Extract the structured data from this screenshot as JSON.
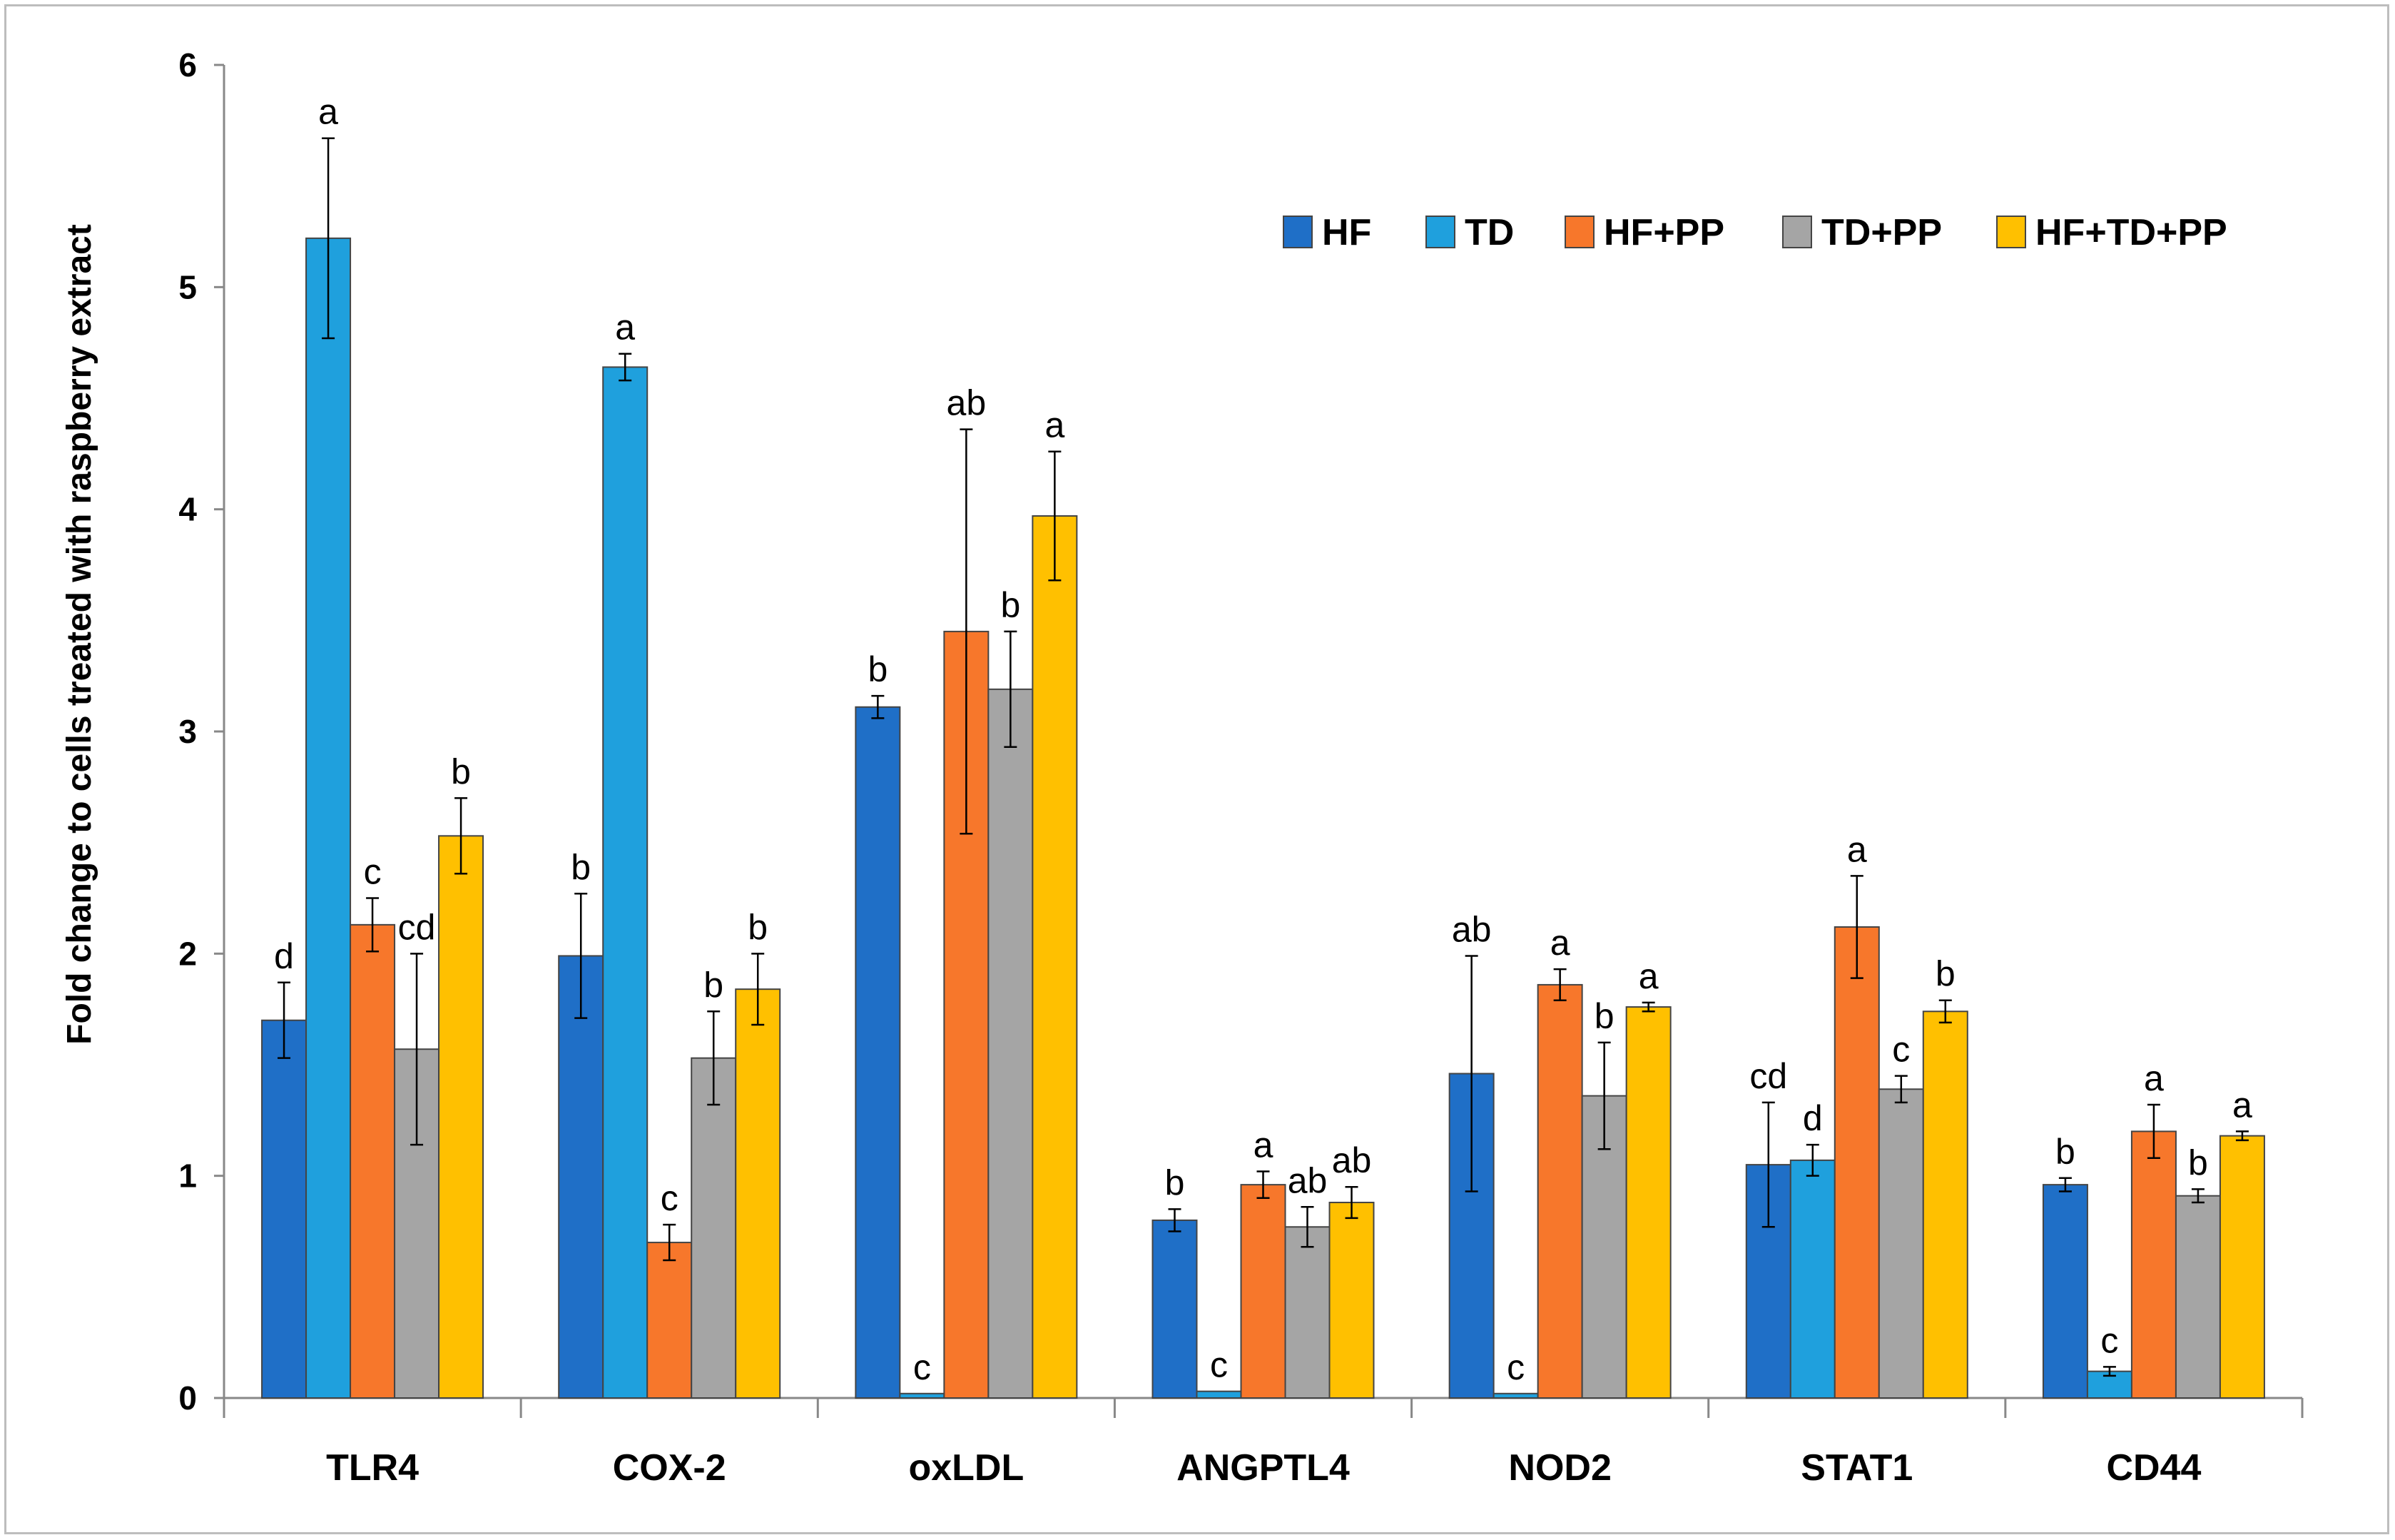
{
  "chart_data": {
    "type": "bar",
    "title": "",
    "xlabel": "",
    "ylabel": "Fold change to cells treated with raspberry extract",
    "ylim": [
      0,
      6
    ],
    "yticks": [
      0,
      1,
      2,
      3,
      4,
      5,
      6
    ],
    "grid": false,
    "legend_position": "top-right",
    "categories": [
      "TLR4",
      "COX-2",
      "oxLDL",
      "ANGPTL4",
      "NOD2",
      "STAT1",
      "CD44"
    ],
    "series": [
      {
        "name": "HF",
        "color": "#1f6fc7",
        "values": [
          1.7,
          1.99,
          3.11,
          0.8,
          1.46,
          1.05,
          0.96
        ],
        "errors": [
          0.17,
          0.28,
          0.05,
          0.05,
          0.53,
          0.28,
          0.03
        ],
        "labels": [
          "d",
          "b",
          "b",
          "b",
          "ab",
          "cd",
          "b"
        ]
      },
      {
        "name": "TD",
        "color": "#1fa0dd",
        "values": [
          5.22,
          4.64,
          0.02,
          0.03,
          0.02,
          1.07,
          0.12
        ],
        "errors": [
          0.45,
          0.06,
          0.0,
          0.0,
          0.0,
          0.07,
          0.02
        ],
        "labels": [
          "a",
          "a",
          "c",
          "c",
          "c",
          "d",
          "c"
        ]
      },
      {
        "name": "HF+PP",
        "color": "#f7772b",
        "values": [
          2.13,
          0.7,
          3.45,
          0.96,
          1.86,
          2.12,
          1.2
        ],
        "errors": [
          0.12,
          0.08,
          0.91,
          0.06,
          0.07,
          0.23,
          0.12
        ],
        "labels": [
          "c",
          "c",
          "ab",
          "a",
          "a",
          "a",
          "a"
        ]
      },
      {
        "name": "TD+PP",
        "color": "#a5a5a5",
        "values": [
          1.57,
          1.53,
          3.19,
          0.77,
          1.36,
          1.39,
          0.91
        ],
        "errors": [
          0.43,
          0.21,
          0.26,
          0.09,
          0.24,
          0.06,
          0.03
        ],
        "labels": [
          "cd",
          "b",
          "b",
          "ab",
          "b",
          "c",
          "b"
        ]
      },
      {
        "name": "HF+TD+PP",
        "color": "#ffc000",
        "values": [
          2.53,
          1.84,
          3.97,
          0.88,
          1.76,
          1.74,
          1.18
        ],
        "errors": [
          0.17,
          0.16,
          0.29,
          0.07,
          0.02,
          0.05,
          0.02
        ],
        "labels": [
          "b",
          "b",
          "a",
          "ab",
          "a",
          "b",
          "a"
        ]
      }
    ]
  }
}
